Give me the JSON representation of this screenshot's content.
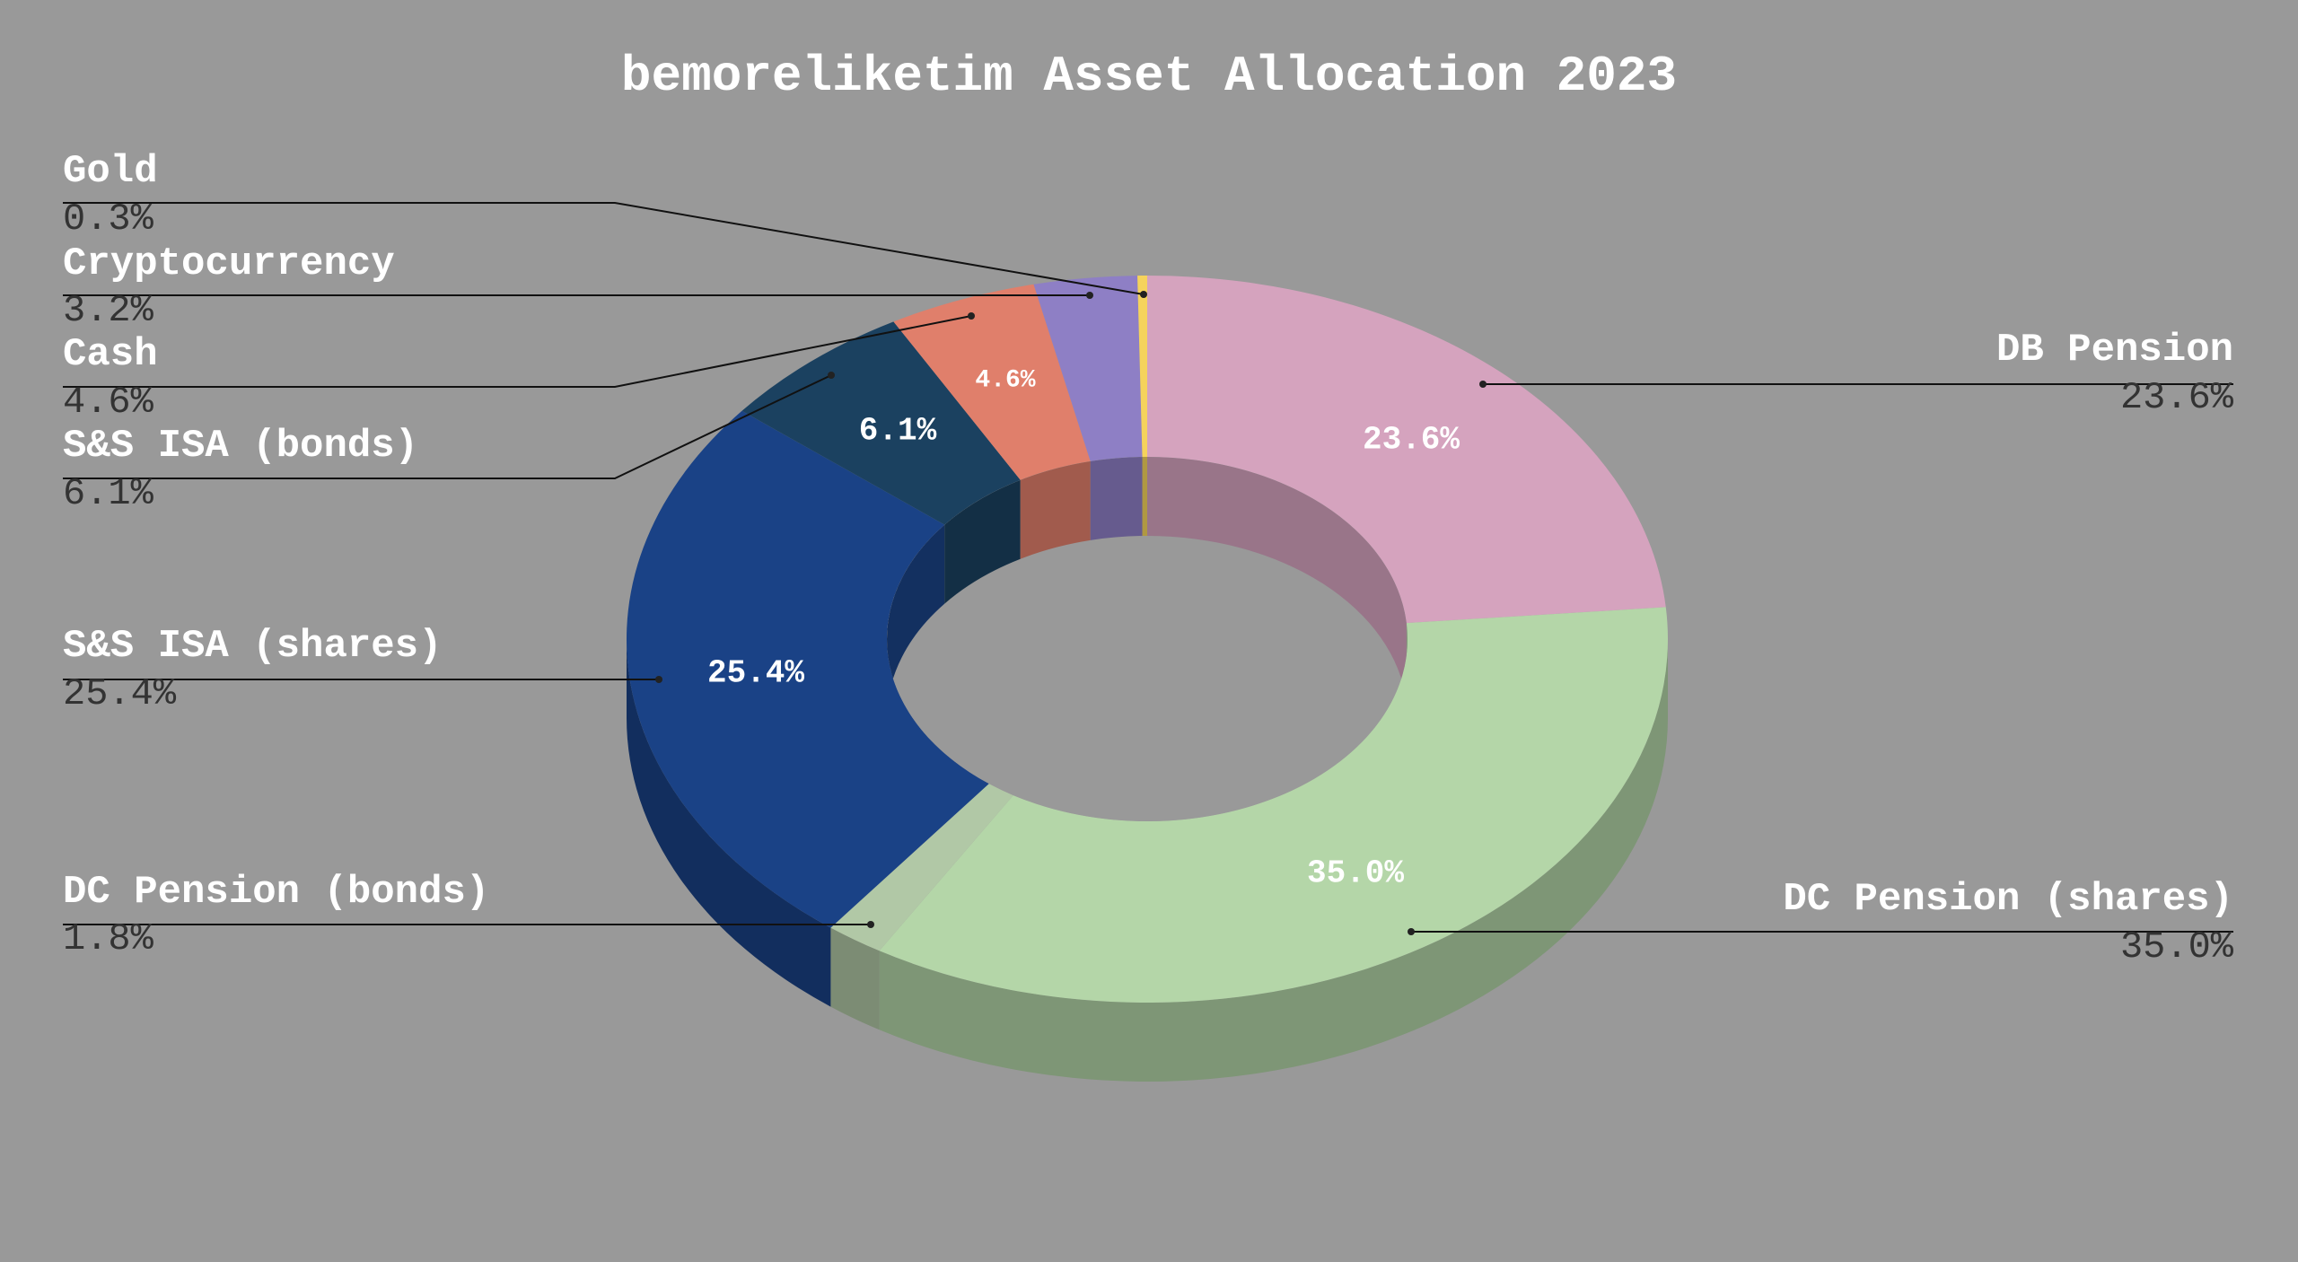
{
  "chart_data": {
    "type": "pie",
    "variant": "3d-donut",
    "title": "bemoreliketim Asset Allocation 2023",
    "background": "#999999",
    "slices": [
      {
        "label": "DB Pension",
        "value": 23.6,
        "percent_label": "23.6%",
        "color": "#d5a3be"
      },
      {
        "label": "DC Pension (shares)",
        "value": 35.0,
        "percent_label": "35.0%",
        "color": "#b4d6a8"
      },
      {
        "label": "DC Pension (bonds)",
        "value": 1.8,
        "percent_label": "1.8%",
        "color": "#b1c8a6"
      },
      {
        "label": "S&S ISA (shares)",
        "value": 25.4,
        "percent_label": "25.4%",
        "color": "#1a4286"
      },
      {
        "label": "S&S ISA (bonds)",
        "value": 6.1,
        "percent_label": "6.1%",
        "color": "#1b4160"
      },
      {
        "label": "Cash",
        "value": 4.6,
        "percent_label": "4.6%",
        "color": "#e07f6b"
      },
      {
        "label": "Cryptocurrency",
        "value": 3.2,
        "percent_label": "3.2%",
        "color": "#8e7fc5"
      },
      {
        "label": "Gold",
        "value": 0.3,
        "percent_label": "0.3%",
        "color": "#f5d35c"
      }
    ]
  }
}
